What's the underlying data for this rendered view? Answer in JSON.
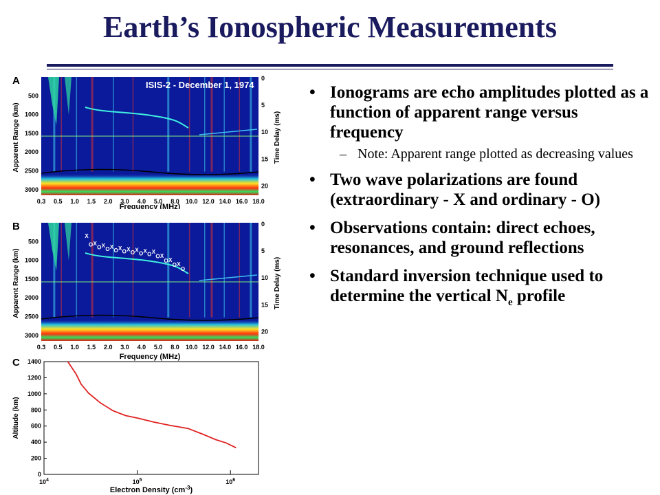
{
  "slide": {
    "title": "Earth’s Ionospheric Measurements",
    "bullets": [
      {
        "text": "Ionograms are echo amplitudes plotted as a function of apparent range versus frequency",
        "sub": [
          "Note: Apparent range plotted as decreasing values"
        ]
      },
      {
        "text": "Two wave polarizations are found (extraordinary - X and ordinary - O)"
      },
      {
        "text": "Observations contain: direct echoes, resonances, and ground reflections"
      },
      {
        "text_main": "Standard inversion technique used to determine the vertical N",
        "text_sub": "e",
        "text_end": " profile"
      }
    ],
    "sub_dash": "–"
  },
  "panel_a": {
    "letter": "A",
    "banner": "ISIS-2 - December 1, 1974",
    "ylabel": "Apparent Range (km)",
    "y2label": "Time Delay (ms)",
    "xlabel": "Frequency (MHz)",
    "yticks": [
      "500",
      "1000",
      "1500",
      "2000",
      "2500",
      "3000"
    ],
    "y2ticks": [
      "0",
      "5",
      "10",
      "15",
      "20"
    ],
    "xticks": [
      "0.3",
      "0.5",
      "1.0",
      "1.5",
      "2.0",
      "3.0",
      "4.0",
      "5.0",
      "8.0",
      "10.0",
      "12.0",
      "14.0",
      "16.0",
      "18.0"
    ]
  },
  "panel_b": {
    "letter": "B",
    "ylabel": "Apparent Range (km)",
    "y2label": "Time Delay (ms)",
    "xlabel": "Frequency (MHz)",
    "yticks": [
      "500",
      "1000",
      "1500",
      "2000",
      "2500",
      "3000"
    ],
    "y2ticks": [
      "0",
      "5",
      "10",
      "15",
      "20"
    ],
    "xticks": [
      "0.3",
      "0.5",
      "1.0",
      "1.5",
      "2.0",
      "3.0",
      "4.0",
      "5.0",
      "8.0",
      "10.0",
      "12.0",
      "14.0",
      "16.0",
      "18.0"
    ],
    "markers": [
      "X",
      "O",
      "X",
      "O",
      "X",
      "O",
      "X",
      "O",
      "X",
      "O",
      "X",
      "O",
      "X",
      "O",
      "X",
      "O",
      "X",
      "O",
      "X",
      "O",
      "X",
      "O",
      "X",
      "O"
    ]
  },
  "chart_data": [
    {
      "type": "line",
      "letter": "C",
      "xlabel": "Electron Density (cm",
      "xlabel_sup": "-3",
      "xlabel_end": ")",
      "ylabel": "Altitude (km)",
      "xscale": "log",
      "xlim": [
        10000,
        2000000
      ],
      "ylim": [
        0,
        1400
      ],
      "xtick_base": "10",
      "xtick_exps": [
        "4",
        "5",
        "6"
      ],
      "yticks": [
        "0",
        "200",
        "400",
        "600",
        "800",
        "1000",
        "1200",
        "1400"
      ],
      "series": [
        {
          "color": "#e02020",
          "x": [
            18000,
            22000,
            25000,
            30000,
            40000,
            55000,
            75000,
            100000,
            150000,
            220000,
            350000,
            500000,
            700000,
            900000,
            1150000
          ],
          "y": [
            1400,
            1250,
            1120,
            1010,
            890,
            790,
            730,
            700,
            650,
            610,
            570,
            500,
            430,
            390,
            330
          ]
        }
      ]
    }
  ]
}
